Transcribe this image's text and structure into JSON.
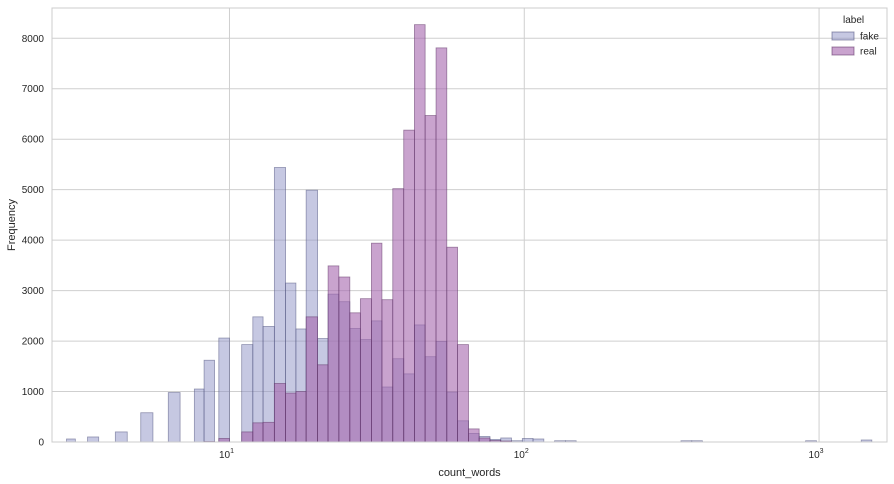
{
  "chart_data": {
    "type": "bar",
    "xscale": "log",
    "xlabel": "count_words",
    "ylabel": "Frequency",
    "xlim": [
      2.5,
      1700
    ],
    "ylim": [
      0,
      8600
    ],
    "x_ticks": [
      {
        "value": 10,
        "base": "10",
        "exp": "1"
      },
      {
        "value": 100,
        "base": "10",
        "exp": "2"
      },
      {
        "value": 1000,
        "base": "10",
        "exp": "3"
      }
    ],
    "y_ticks": [
      0,
      1000,
      2000,
      3000,
      4000,
      5000,
      6000,
      7000,
      8000
    ],
    "grid": true,
    "legend": {
      "title": "label",
      "placement": "top-right"
    },
    "series": [
      {
        "name": "fake",
        "color": "#8e92c6",
        "edge": "#4b4f7a",
        "bins": [
          [
            2.8,
            3.0,
            60
          ],
          [
            3.3,
            3.6,
            100
          ],
          [
            4.1,
            4.5,
            200
          ],
          [
            5.0,
            5.5,
            580
          ],
          [
            6.2,
            6.8,
            980
          ],
          [
            7.6,
            8.2,
            1050
          ],
          [
            8.2,
            8.9,
            1620
          ],
          [
            9.2,
            10.0,
            2060
          ],
          [
            11.0,
            12.0,
            1930
          ],
          [
            12.0,
            13.0,
            2480
          ],
          [
            13.0,
            14.2,
            2290
          ],
          [
            14.2,
            15.5,
            5440
          ],
          [
            15.5,
            16.8,
            3150
          ],
          [
            16.8,
            18.2,
            2240
          ],
          [
            18.2,
            19.9,
            4990
          ],
          [
            19.9,
            21.6,
            2050
          ],
          [
            21.6,
            23.5,
            2930
          ],
          [
            23.5,
            25.6,
            2780
          ],
          [
            25.6,
            27.8,
            2250
          ],
          [
            27.8,
            30.3,
            2030
          ],
          [
            30.3,
            32.9,
            2400
          ],
          [
            32.9,
            35.8,
            1090
          ],
          [
            35.8,
            39.0,
            1650
          ],
          [
            39.0,
            42.4,
            1350
          ],
          [
            42.4,
            46.1,
            2320
          ],
          [
            46.1,
            50.2,
            1690
          ],
          [
            50.2,
            54.6,
            1990
          ],
          [
            54.6,
            59.4,
            990
          ],
          [
            59.4,
            64.7,
            420
          ],
          [
            64.7,
            70.3,
            170
          ],
          [
            70.3,
            76.5,
            110
          ],
          [
            76.5,
            83.2,
            50
          ],
          [
            83.2,
            90.5,
            80
          ],
          [
            90.5,
            98.5,
            25
          ],
          [
            98.5,
            107.1,
            70
          ],
          [
            107.1,
            116.5,
            60
          ],
          [
            126.7,
            137.9,
            25
          ],
          [
            137.9,
            150.0,
            25
          ],
          [
            340,
            370,
            25
          ],
          [
            370,
            402,
            25
          ],
          [
            900,
            980,
            25
          ],
          [
            1390,
            1510,
            40
          ]
        ]
      },
      {
        "name": "real",
        "color": "#a565ad",
        "edge": "#5a2d60",
        "bins": [
          [
            8.2,
            8.9,
            10
          ],
          [
            9.2,
            10.0,
            70
          ],
          [
            11.0,
            12.0,
            200
          ],
          [
            12.0,
            13.0,
            380
          ],
          [
            13.0,
            14.2,
            390
          ],
          [
            14.2,
            15.5,
            1160
          ],
          [
            15.5,
            16.8,
            970
          ],
          [
            16.8,
            18.2,
            1000
          ],
          [
            18.2,
            19.9,
            2480
          ],
          [
            19.9,
            21.6,
            1530
          ],
          [
            21.6,
            23.5,
            3490
          ],
          [
            23.5,
            25.6,
            3270
          ],
          [
            25.6,
            27.8,
            2560
          ],
          [
            27.8,
            30.3,
            2840
          ],
          [
            30.3,
            32.9,
            3940
          ],
          [
            32.9,
            35.8,
            2820
          ],
          [
            35.8,
            39.0,
            5020
          ],
          [
            39.0,
            42.4,
            6180
          ],
          [
            42.4,
            46.1,
            8270
          ],
          [
            46.1,
            50.2,
            6470
          ],
          [
            50.2,
            54.6,
            7810
          ],
          [
            54.6,
            59.4,
            3860
          ],
          [
            59.4,
            64.7,
            1930
          ],
          [
            64.7,
            70.3,
            260
          ],
          [
            70.3,
            76.5,
            80
          ],
          [
            76.5,
            83.2,
            30
          ],
          [
            83.2,
            90.5,
            20
          ]
        ]
      }
    ]
  }
}
